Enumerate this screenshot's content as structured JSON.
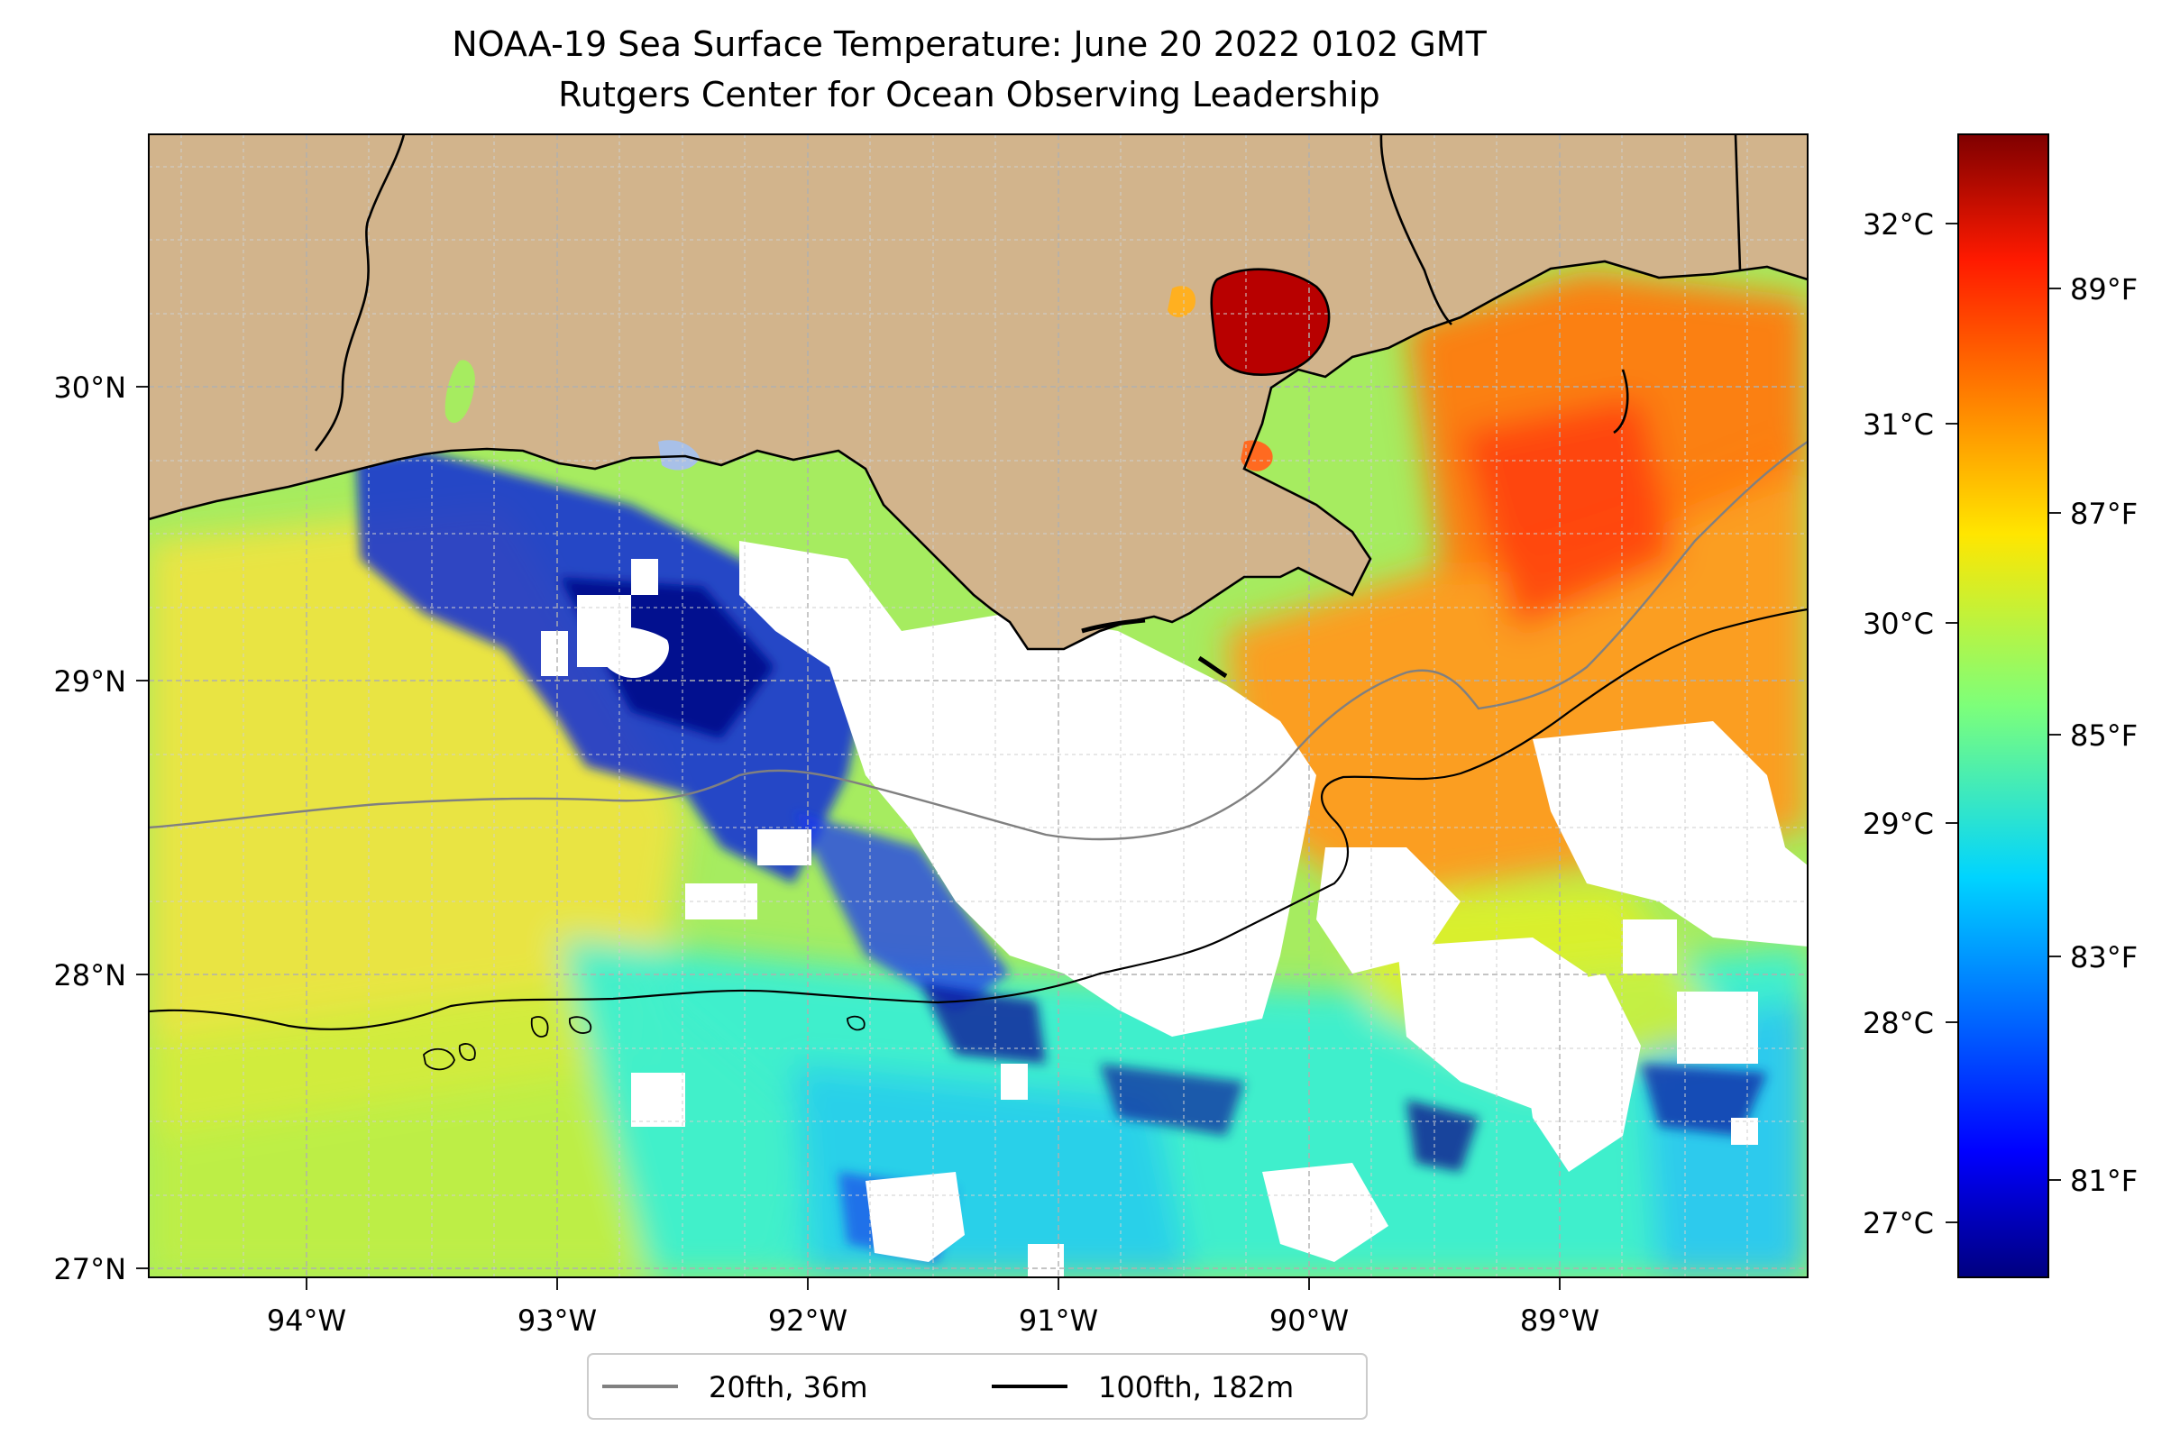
{
  "title": {
    "line1": "NOAA-19 Sea Surface Temperature: June 20 2022 0102 GMT",
    "line2": "Rutgers Center for Ocean Observing Leadership"
  },
  "map": {
    "lon_labels": [
      "94°W",
      "93°W",
      "92°W",
      "91°W",
      "90°W",
      "89°W"
    ],
    "lat_labels": [
      "30°N",
      "29°N",
      "28°N",
      "27°N"
    ],
    "colors": {
      "land": "#d2b48c",
      "no_data": "#ffffff",
      "grid": "#b0b0b0"
    }
  },
  "colorbar": {
    "colormap": "jet",
    "celsius_labels": [
      "32°C",
      "31°C",
      "30°C",
      "29°C",
      "28°C",
      "27°C"
    ],
    "fahrenheit_labels": [
      "89°F",
      "87°F",
      "85°F",
      "83°F",
      "81°F"
    ]
  },
  "legend": {
    "items": [
      {
        "label": "20fth, 36m",
        "color": "#808080"
      },
      {
        "label": "100fth, 182m",
        "color": "#000000"
      }
    ]
  }
}
